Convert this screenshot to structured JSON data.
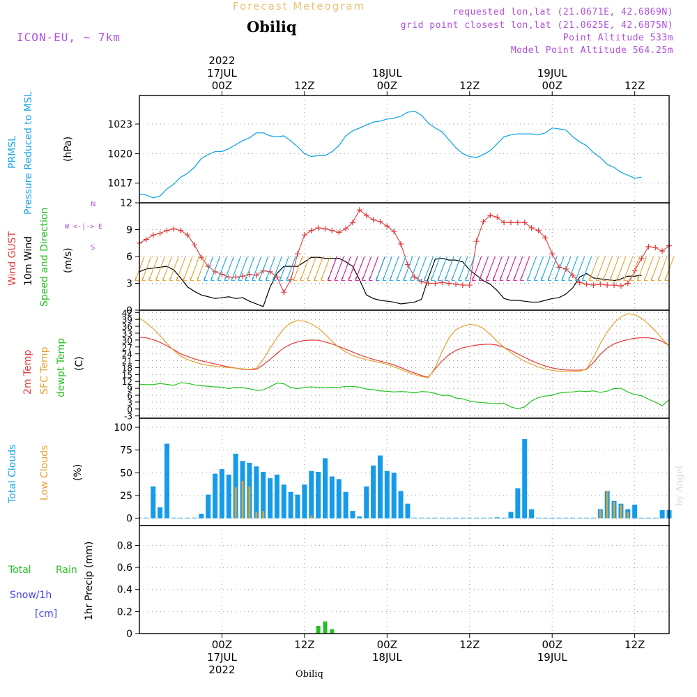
{
  "header": {
    "title": "Forecast Meteogram",
    "station": "Obiliq",
    "model": "ICON-EU, ~ 7km",
    "requested": "requested lon,lat (21.0671E, 42.6869N)",
    "gridpoint": "grid point closest lon,lat (21.0625E, 42.6875N)",
    "point_alt": "Point Altitude 533m",
    "model_alt": "Model Point Altitude 564.25m",
    "watermark": "by Angel",
    "footer_station": "Obiliq"
  },
  "time_axis": {
    "year": "2022",
    "ticks": [
      {
        "label": "00Z",
        "date": "17JUL",
        "year": "2022"
      },
      {
        "label": "12Z",
        "date": "",
        "year": ""
      },
      {
        "label": "00Z",
        "date": "18JUL",
        "year": ""
      },
      {
        "label": "12Z",
        "date": "",
        "year": ""
      },
      {
        "label": "00Z",
        "date": "19JUL",
        "year": ""
      },
      {
        "label": "12Z",
        "date": "",
        "year": ""
      }
    ]
  },
  "panel_labels": {
    "p1": [
      "PRMSL",
      "Pressure Reduced to MSL",
      "(hPa)"
    ],
    "p2": [
      "Wind GUST",
      "10m Wind",
      "Speed and Direction",
      "(m/s)"
    ],
    "compass": [
      "N",
      "W <-|-> E",
      "S"
    ],
    "p3": [
      "2m Temp",
      "SFC Temp",
      "dewpt Temp",
      "(C)"
    ],
    "p4": [
      "Total Clouds",
      "Low Clouds",
      "(%)"
    ],
    "p5": [
      "Total",
      "Rain",
      "Snow/1h",
      "[cm]",
      "1hr Precip (mm)"
    ]
  },
  "colors": {
    "pressure": "#17a5e6",
    "gust": "#e23b3b",
    "wind10m": "#000000",
    "temp2m": "#e23b3b",
    "sfc": "#e5a12f",
    "dewpt": "#23c21f",
    "clouds_total": "#159bea",
    "clouds_low": "#d8a43c",
    "rain": "#27bf27",
    "snow": "#4444ee",
    "annotation": "#b14fe0",
    "title": "#ecc37a"
  },
  "chart_data": [
    {
      "type": "line",
      "title": "PRMSL Pressure Reduced to MSL",
      "ylabel": "(hPa)",
      "ylim": [
        1015.0,
        1025.9
      ],
      "yticks": [
        1017,
        1020,
        1023
      ],
      "x_hours": [
        -12,
        -11,
        -10,
        -9,
        -8,
        -7,
        -6,
        -5,
        -4,
        -3,
        -2,
        -1,
        0,
        1,
        2,
        3,
        4,
        5,
        6,
        7,
        8,
        9,
        10,
        11,
        12,
        13,
        14,
        15,
        16,
        17,
        18,
        19,
        20,
        21,
        22,
        23,
        24,
        25,
        26,
        27,
        28,
        29,
        30,
        31,
        32,
        33,
        34,
        35,
        36,
        37,
        38,
        39,
        40,
        41,
        42,
        43,
        44,
        45,
        46,
        47,
        48,
        49,
        50,
        51,
        52,
        53,
        54,
        55,
        56,
        57,
        58,
        59,
        60,
        61,
        62,
        63,
        64,
        65
      ],
      "series": [
        {
          "name": "PRMSL",
          "values": [
            1015.9,
            1015.8,
            1015.5,
            1015.7,
            1016.4,
            1016.9,
            1017.6,
            1018.0,
            1018.6,
            1019.5,
            1019.9,
            1020.2,
            1020.2,
            1020.5,
            1020.9,
            1021.3,
            1021.6,
            1022.1,
            1022.1,
            1021.8,
            1021.7,
            1021.8,
            1021.3,
            1020.7,
            1020.0,
            1019.7,
            1019.8,
            1019.8,
            1020.2,
            1020.8,
            1021.8,
            1022.3,
            1022.6,
            1022.9,
            1023.2,
            1023.3,
            1023.5,
            1023.6,
            1023.8,
            1024.2,
            1024.3,
            1023.9,
            1023.1,
            1022.6,
            1022.2,
            1021.4,
            1020.6,
            1020.0,
            1019.7,
            1019.6,
            1019.9,
            1020.3,
            1021.0,
            1021.7,
            1021.9,
            1022.0,
            1022.0,
            1022.0,
            1021.9,
            1022.1,
            1022.6,
            1022.5,
            1022.4,
            1021.7,
            1021.2,
            1020.8,
            1020.1,
            1019.6,
            1018.9,
            1018.6,
            1018.1,
            1017.8,
            1017.5,
            1017.6
          ]
        }
      ]
    },
    {
      "type": "line",
      "title": "Wind GUST / 10m Wind Speed and Direction",
      "ylabel": "(m/s)",
      "ylim": [
        0,
        12
      ],
      "yticks": [
        0,
        3,
        6,
        9,
        12
      ],
      "x_hours": [
        -12,
        -11,
        -10,
        -9,
        -8,
        -7,
        -6,
        -5,
        -4,
        -3,
        -2,
        -1,
        0,
        1,
        2,
        3,
        4,
        5,
        6,
        7,
        8,
        9,
        10,
        11,
        12,
        13,
        14,
        15,
        16,
        17,
        18,
        19,
        20,
        21,
        22,
        23,
        24,
        25,
        26,
        27,
        28,
        29,
        30,
        31,
        32,
        33,
        34,
        35,
        36,
        37,
        38,
        39,
        40,
        41,
        42,
        43,
        44,
        45,
        46,
        47,
        48,
        49,
        50,
        51,
        52,
        53,
        54,
        55,
        56,
        57,
        58,
        59,
        60,
        61,
        62,
        63,
        64,
        65
      ],
      "series": [
        {
          "name": "Wind GUST",
          "values": [
            7.5,
            7.9,
            8.4,
            8.6,
            8.9,
            9.1,
            8.9,
            8.4,
            7.3,
            5.9,
            4.9,
            4.3,
            4.0,
            3.7,
            3.7,
            3.8,
            4.0,
            3.9,
            4.4,
            4.3,
            3.7,
            2.0,
            3.4,
            6.3,
            8.4,
            8.9,
            9.2,
            9.1,
            8.9,
            8.7,
            9.1,
            9.8,
            11.2,
            10.6,
            10.1,
            9.9,
            9.4,
            8.8,
            7.4,
            5.1,
            3.7,
            3.2,
            3.0,
            3.0,
            3.1,
            3.0,
            2.9,
            2.8,
            2.8,
            7.7,
            9.9,
            10.6,
            10.4,
            9.8,
            9.8,
            9.8,
            9.8,
            9.2,
            8.9,
            8.1,
            6.3,
            4.8,
            4.6,
            3.9,
            3.1,
            2.9,
            2.8,
            2.9,
            2.8,
            2.8,
            2.7,
            3.0,
            4.4,
            5.8,
            7.1,
            7.0,
            6.6,
            7.2
          ]
        },
        {
          "name": "10m Wind",
          "values": [
            4.3,
            4.6,
            4.7,
            4.8,
            4.9,
            4.5,
            3.6,
            2.6,
            2.1,
            1.7,
            1.5,
            1.3,
            1.4,
            1.5,
            1.3,
            1.4,
            1.0,
            0.7,
            0.4,
            2.6,
            4.1,
            4.9,
            4.9,
            4.9,
            5.4,
            5.9,
            5.9,
            5.8,
            5.8,
            5.8,
            5.4,
            4.9,
            3.4,
            1.7,
            1.3,
            1.1,
            1.0,
            0.9,
            0.7,
            0.8,
            0.9,
            1.2,
            3.6,
            5.7,
            5.8,
            5.6,
            5.6,
            5.4,
            4.5,
            3.9,
            3.3,
            2.9,
            2.2,
            1.3,
            1.1,
            1.1,
            1.0,
            0.9,
            0.9,
            1.1,
            1.3,
            1.4,
            1.8,
            2.5,
            3.7,
            4.1,
            3.6,
            3.5,
            3.4,
            3.3,
            3.5,
            3.8,
            3.8,
            3.9
          ]
        }
      ],
      "wind_barbs": {
        "direction": "mostly N to NW; NE late on 19JUL",
        "bands": [
          {
            "from_hour": -12,
            "to_hour": -3,
            "color": "#e5a12f"
          },
          {
            "from_hour": -2,
            "to_hour": 10,
            "color": "#17a5e6"
          },
          {
            "from_hour": 11,
            "to_hour": 16,
            "color": "#e5a12f"
          },
          {
            "from_hour": 16,
            "to_hour": 23,
            "color": "#d0168f"
          },
          {
            "from_hour": 23,
            "to_hour": 36,
            "color": "#17a5e6"
          },
          {
            "from_hour": 37,
            "to_hour": 44,
            "color": "#d0168f"
          },
          {
            "from_hour": 45,
            "to_hour": 53,
            "color": "#17a5e6"
          },
          {
            "from_hour": 54,
            "to_hour": 65,
            "color": "#e5a12f"
          }
        ]
      }
    },
    {
      "type": "line",
      "title": "2m Temp / SFC Temp / dewpt Temp",
      "ylabel": "(C)",
      "ylim": [
        -4,
        43
      ],
      "yticks": [
        -3,
        0,
        3,
        6,
        9,
        12,
        15,
        18,
        21,
        24,
        27,
        30,
        33,
        36,
        39,
        42
      ],
      "x_hours": [
        -12,
        -11,
        -10,
        -9,
        -8,
        -7,
        -6,
        -5,
        -4,
        -3,
        -2,
        -1,
        0,
        1,
        2,
        3,
        4,
        5,
        6,
        7,
        8,
        9,
        10,
        11,
        12,
        13,
        14,
        15,
        16,
        17,
        18,
        19,
        20,
        21,
        22,
        23,
        24,
        25,
        26,
        27,
        28,
        29,
        30,
        31,
        32,
        33,
        34,
        35,
        36,
        37,
        38,
        39,
        40,
        41,
        42,
        43,
        44,
        45,
        46,
        47,
        48,
        49,
        50,
        51,
        52,
        53,
        54,
        55,
        56,
        57,
        58,
        59,
        60,
        61,
        62,
        63,
        64,
        65
      ],
      "series": [
        {
          "name": "2m Temp",
          "values": [
            31.2,
            31.0,
            30.2,
            29.0,
            27.5,
            25.8,
            24.0,
            22.9,
            21.8,
            21.0,
            20.3,
            19.6,
            18.9,
            18.3,
            17.8,
            17.3,
            17.1,
            17.3,
            19.2,
            21.6,
            24.2,
            26.6,
            28.2,
            29.2,
            29.8,
            30.0,
            29.9,
            29.2,
            28.3,
            27.2,
            26.0,
            24.8,
            23.6,
            22.5,
            21.6,
            20.8,
            20.1,
            19.2,
            18.0,
            16.8,
            15.7,
            14.6,
            13.8,
            17.5,
            20.9,
            23.6,
            25.5,
            26.6,
            27.3,
            27.8,
            28.1,
            28.2,
            27.8,
            26.8,
            25.5,
            24.0,
            22.5,
            21.0,
            19.8,
            18.7,
            17.9,
            17.3,
            17.0,
            16.9,
            16.9,
            17.2,
            20.2,
            23.8,
            26.5,
            28.3,
            29.4,
            30.2,
            30.8,
            31.0,
            31.0,
            30.5,
            29.4,
            27.6
          ]
        },
        {
          "name": "SFC Temp",
          "values": [
            39.5,
            37.5,
            35.0,
            32.0,
            28.5,
            25.5,
            23.0,
            21.5,
            20.5,
            19.5,
            19.0,
            18.6,
            18.3,
            18.0,
            17.8,
            17.5,
            17.2,
            17.8,
            21.5,
            26.5,
            31.0,
            35.0,
            37.5,
            38.5,
            38.2,
            37.0,
            35.2,
            32.5,
            29.5,
            26.8,
            24.8,
            23.3,
            22.3,
            21.5,
            20.8,
            20.2,
            19.4,
            18.4,
            17.2,
            16.0,
            15.0,
            14.1,
            13.6,
            18.0,
            25.0,
            31.0,
            34.5,
            36.0,
            36.8,
            36.5,
            35.0,
            32.5,
            29.5,
            26.8,
            24.5,
            22.5,
            20.8,
            19.5,
            18.3,
            17.4,
            16.8,
            16.4,
            16.3,
            16.2,
            16.4,
            17.5,
            22.5,
            28.5,
            33.5,
            37.5,
            40.0,
            41.5,
            41.0,
            39.5,
            37.0,
            34.0,
            30.5,
            27.5
          ]
        },
        {
          "name": "dewpt Temp",
          "values": [
            10.8,
            10.6,
            10.6,
            11.1,
            10.7,
            10.3,
            11.4,
            11.2,
            10.5,
            10.1,
            9.9,
            9.6,
            9.5,
            8.9,
            9.5,
            9.3,
            8.8,
            8.1,
            8.3,
            9.7,
            11.3,
            11.0,
            9.3,
            8.9,
            9.4,
            9.6,
            9.4,
            9.4,
            9.5,
            9.4,
            9.8,
            9.8,
            9.5,
            8.7,
            8.4,
            7.9,
            7.7,
            7.4,
            7.6,
            7.4,
            7.0,
            7.6,
            7.4,
            6.8,
            5.9,
            6.0,
            4.8,
            4.4,
            3.5,
            3.0,
            2.8,
            2.5,
            2.4,
            2.5,
            0.9,
            0.1,
            0.9,
            3.5,
            5.0,
            5.6,
            6.0,
            6.9,
            7.3,
            7.4,
            7.8,
            7.6,
            7.9,
            7.2,
            7.8,
            8.9,
            9.0,
            7.4,
            6.3,
            5.8,
            4.3,
            3.0,
            1.4,
            4.1
          ]
        }
      ]
    },
    {
      "type": "bar",
      "title": "Total Clouds / Low Clouds",
      "ylabel": "(%)",
      "ylim": [
        -8,
        110
      ],
      "yticks": [
        0,
        25,
        50,
        75,
        100
      ],
      "x_hours": [
        -12,
        -11,
        -10,
        -9,
        -8,
        -7,
        -6,
        -5,
        -4,
        -3,
        -2,
        -1,
        0,
        1,
        2,
        3,
        4,
        5,
        6,
        7,
        8,
        9,
        10,
        11,
        12,
        13,
        14,
        15,
        16,
        17,
        18,
        19,
        20,
        21,
        22,
        23,
        24,
        25,
        26,
        27,
        28,
        29,
        30,
        31,
        32,
        33,
        34,
        35,
        36,
        37,
        38,
        39,
        40,
        41,
        42,
        43,
        44,
        45,
        46,
        47,
        48,
        49,
        50,
        51,
        52,
        53,
        54,
        55,
        56,
        57,
        58,
        59,
        60,
        61,
        62,
        63,
        64,
        65
      ],
      "series": [
        {
          "name": "Total Clouds",
          "values": [
            0,
            0,
            35,
            12,
            82,
            0,
            0,
            0,
            0,
            5,
            26,
            49,
            54,
            48,
            71,
            63,
            61,
            57,
            51,
            44,
            48,
            37,
            29,
            26,
            37,
            52,
            51,
            66,
            46,
            43,
            29,
            8,
            2,
            35,
            58,
            69,
            52,
            50,
            30,
            16,
            0,
            0,
            0,
            0,
            0,
            0,
            0,
            0,
            0,
            0,
            0,
            0,
            1,
            0,
            7,
            33,
            87,
            10,
            0,
            0,
            0,
            0,
            0,
            0,
            0,
            0,
            0,
            10,
            30,
            19,
            16,
            10,
            15,
            0,
            0,
            0,
            9,
            9
          ]
        },
        {
          "name": "Low Clouds",
          "values": [
            1,
            0,
            0,
            0,
            0,
            0,
            0,
            0,
            0,
            0,
            0,
            0,
            0,
            0,
            34,
            41,
            35,
            7,
            8,
            0,
            0,
            0,
            0,
            0,
            0,
            3,
            0,
            0,
            0,
            0,
            0,
            0,
            0,
            0,
            0,
            0,
            0,
            0,
            0,
            0,
            0,
            0,
            0,
            0,
            0,
            0,
            0,
            0,
            0,
            0,
            0,
            0,
            0,
            0,
            0,
            0,
            0,
            0,
            0,
            0,
            0,
            0,
            0,
            0,
            0,
            0,
            0,
            9,
            30,
            18,
            15,
            7,
            0,
            0,
            0,
            0,
            0,
            0
          ]
        }
      ]
    },
    {
      "type": "bar",
      "title": "Total Rain / Snow/1h [cm] - 1hr Precip (mm)",
      "ylabel": "1hr Precip (mm)",
      "ylim": [
        0,
        0.98
      ],
      "yticks": [
        0,
        0.2,
        0.4,
        0.6,
        0.8
      ],
      "x_hours": [
        14,
        15,
        16
      ],
      "series": [
        {
          "name": "Total Rain",
          "values": [
            0.07,
            0.11,
            0.04
          ]
        },
        {
          "name": "Snow/1h",
          "values": [
            0,
            0,
            0
          ]
        }
      ]
    }
  ]
}
